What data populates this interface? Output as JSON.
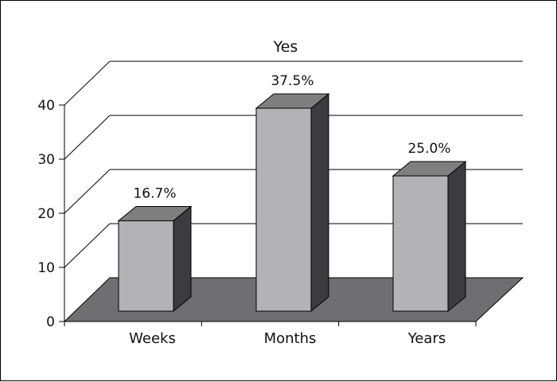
{
  "chart_data": {
    "type": "bar",
    "title": "Yes",
    "xlabel": "",
    "ylabel": "",
    "categories": [
      "Weeks",
      "Months",
      "Years"
    ],
    "values": [
      16.7,
      37.5,
      25.0
    ],
    "data_labels": [
      "16.7%",
      "37.5%",
      "25.0%"
    ],
    "ylim": [
      0,
      40
    ],
    "yticks": [
      "0",
      "10",
      "20",
      "30",
      "40"
    ],
    "grid": true,
    "legend": "none",
    "style": "3d",
    "colors": {
      "bar_front": "#b3b3b5",
      "bar_top": "#7f7f7f",
      "bar_side": "#3c3c3e",
      "floor": "#6f6f71",
      "lines": "#000000"
    }
  }
}
